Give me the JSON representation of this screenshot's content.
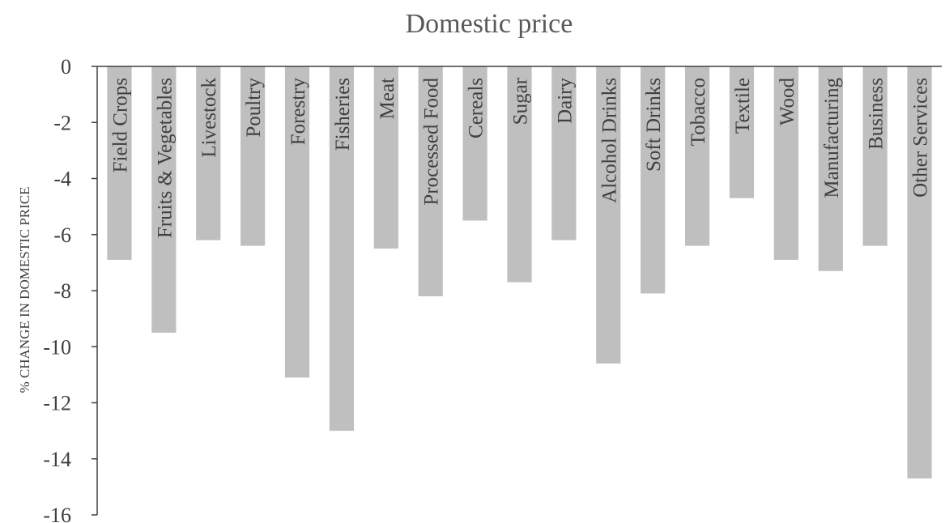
{
  "chart_data": {
    "type": "bar",
    "title": "Domestic price",
    "ylabel": "% CHANGE IN DOMESTIC PRICE",
    "xlabel": "",
    "ylim": [
      -16,
      0
    ],
    "yticks": [
      0,
      -2,
      -4,
      -6,
      -8,
      -10,
      -12,
      -14,
      -16
    ],
    "grid": false,
    "legend": "none",
    "bar_color": "#bfbfbf",
    "axis_color": "#404040",
    "categories": [
      "Field Crops",
      "Fruits & Vegetables",
      "Livestock",
      "Poultry",
      "Forestry",
      "Fisheries",
      "Meat",
      "Processed Food",
      "Cereals",
      "Sugar",
      "Dairy",
      "Alcohol Drinks",
      "Soft Drinks",
      "Tobacco",
      "Textile",
      "Wood",
      "Manufacturing",
      "Business",
      "Other Services"
    ],
    "values": [
      -6.9,
      -9.5,
      -6.2,
      -6.4,
      -11.1,
      -13.0,
      -6.5,
      -8.2,
      -5.5,
      -7.7,
      -6.2,
      -10.6,
      -8.1,
      -6.4,
      -4.7,
      -6.9,
      -7.3,
      -6.4,
      -14.7
    ]
  }
}
